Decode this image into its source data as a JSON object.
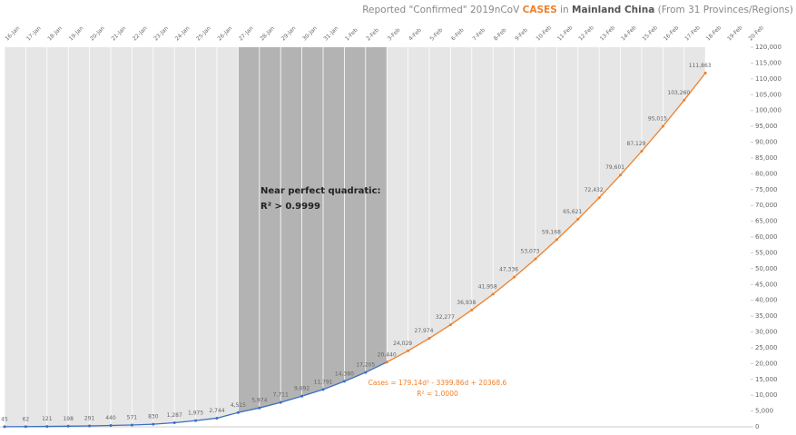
{
  "chart_data": {
    "type": "line",
    "title": [
      "Reported \"Confirmed\" 2019nCoV ",
      "CASES",
      " in ",
      "Mainland China",
      " (From 31 Provinces/Regions)"
    ],
    "categories": [
      "16-Jan",
      "17-Jan",
      "18-Jan",
      "19-Jan",
      "20-Jan",
      "21-Jan",
      "22-Jan",
      "23-Jan",
      "24-Jan",
      "25-Jan",
      "26-Jan",
      "27-Jan",
      "28-Jan",
      "29-Jan",
      "30-Jan",
      "31-Jan",
      "1-Feb",
      "2-Feb",
      "3-Feb",
      "4-Feb",
      "5-Feb",
      "6-Feb",
      "7-Feb",
      "8-Feb",
      "9-Feb",
      "10-Feb",
      "11-Feb",
      "12-Feb",
      "13-Feb",
      "14-Feb",
      "15-Feb",
      "16-Feb",
      "17-Feb",
      "18-Feb",
      "19-Feb",
      "20-Feb"
    ],
    "series": [
      {
        "color": "#3b6fc2",
        "values": [
          45,
          62,
          121,
          198,
          291,
          440,
          571,
          830,
          1287,
          1975,
          2744,
          4515,
          5974,
          7711,
          9692,
          11791,
          14380,
          17205,
          20440,
          null,
          null,
          null,
          null,
          null,
          null,
          null,
          null,
          null,
          null,
          null,
          null,
          null,
          null,
          null,
          null,
          null
        ],
        "value_labels": [
          "45",
          "62",
          "121",
          "198",
          "291",
          "440",
          "571",
          "830",
          "1,287",
          "1,975",
          "2,744",
          "4,515",
          "5,974",
          "7,711",
          "9,692",
          "11,791",
          "14,380",
          "17,205",
          "20,440",
          null,
          null,
          null,
          null,
          null,
          null,
          null,
          null,
          null,
          null,
          null,
          null,
          null,
          null,
          null,
          null,
          null
        ]
      },
      {
        "color": "#f0802a",
        "values": [
          null,
          null,
          null,
          null,
          null,
          null,
          null,
          null,
          null,
          null,
          null,
          null,
          null,
          null,
          null,
          null,
          null,
          null,
          20440,
          24029,
          27974,
          32277,
          36938,
          41958,
          47336,
          53073,
          59168,
          65621,
          72432,
          79601,
          87129,
          95015,
          103260,
          111863,
          null,
          null
        ],
        "value_labels": [
          null,
          null,
          null,
          null,
          null,
          null,
          null,
          null,
          null,
          null,
          null,
          null,
          null,
          null,
          null,
          null,
          null,
          null,
          null,
          "24,029",
          "27,974",
          "32,277",
          "36,938",
          "41,958",
          "47,336",
          "53,073",
          "59,168",
          "65,621",
          "72,432",
          "79,601",
          "87,129",
          "95,015",
          "103,260",
          "111,863",
          null,
          null
        ]
      }
    ],
    "ylim": [
      0,
      120000
    ],
    "yticks": [
      0,
      {
        "value": 5000,
        "label": "5,000"
      },
      {
        "value": 10000,
        "label": "10,000"
      },
      {
        "value": 15000,
        "label": "15,000"
      },
      {
        "value": 20000,
        "label": "20,000"
      },
      {
        "value": 25000,
        "label": "25,000"
      },
      {
        "value": 30000,
        "label": "30,000"
      },
      {
        "value": 35000,
        "label": "35,000"
      },
      {
        "value": 40000,
        "label": "40,000"
      },
      {
        "value": 45000,
        "label": "45,000"
      },
      {
        "value": 50000,
        "label": "50,000"
      },
      {
        "value": 55000,
        "label": "55,000"
      },
      {
        "value": 60000,
        "label": "60,000"
      },
      {
        "value": 65000,
        "label": "65,000"
      },
      {
        "value": 70000,
        "label": "70,000"
      },
      {
        "value": 75000,
        "label": "75,000"
      },
      {
        "value": 80000,
        "label": "80,000"
      },
      {
        "value": 85000,
        "label": "85,000"
      },
      {
        "value": 90000,
        "label": "90,000"
      },
      {
        "value": 95000,
        "label": "95,000"
      },
      {
        "value": 100000,
        "label": "100,000"
      },
      {
        "value": 105000,
        "label": "105,000"
      },
      {
        "value": 110000,
        "label": "110,000"
      },
      {
        "value": 115000,
        "label": "115,000"
      },
      {
        "value": 120000,
        "label": "120,000"
      }
    ],
    "annotations": [
      "Near perfect quadratic:",
      "R² > 0.9999",
      "Cases = 179.14d² - 3399.86d + 20368.6",
      "R² = 1.0000"
    ],
    "grid": true
  }
}
